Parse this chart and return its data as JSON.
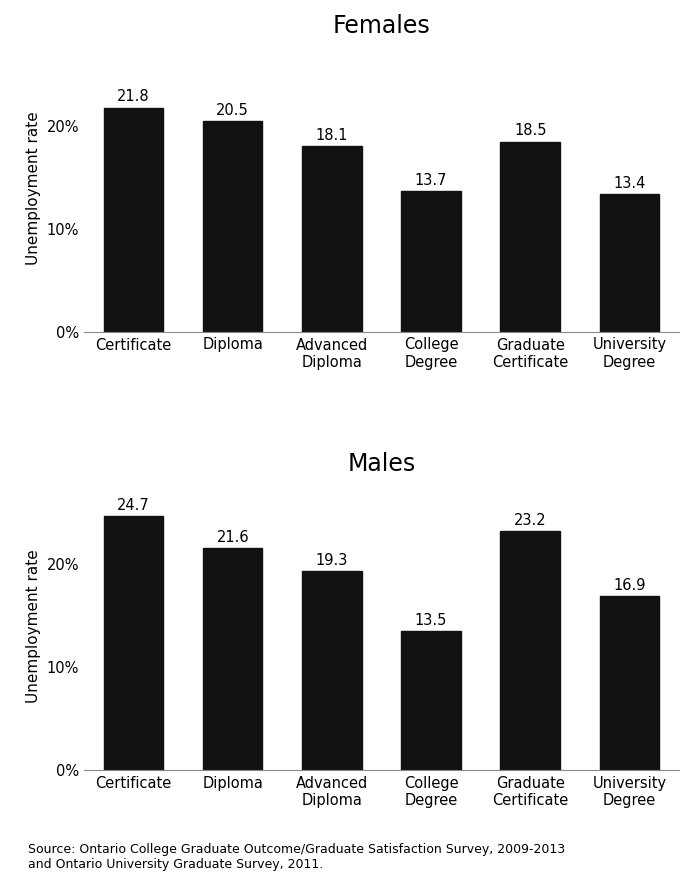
{
  "females": {
    "title": "Females",
    "categories": [
      "Certificate",
      "Diploma",
      "Advanced\nDiploma",
      "College\nDegree",
      "Graduate\nCertificate",
      "University\nDegree"
    ],
    "values": [
      21.8,
      20.5,
      18.1,
      13.7,
      18.5,
      13.4
    ]
  },
  "males": {
    "title": "Males",
    "categories": [
      "Certificate",
      "Diploma",
      "Advanced\nDiploma",
      "College\nDegree",
      "Graduate\nCertificate",
      "University\nDegree"
    ],
    "values": [
      24.7,
      21.6,
      19.3,
      13.5,
      23.2,
      16.9
    ]
  },
  "bar_color": "#111111",
  "ylabel": "Unemployment rate",
  "yticks": [
    0,
    10,
    20
  ],
  "ytick_labels": [
    "0%",
    "10%",
    "20%"
  ],
  "ylim": [
    0,
    28
  ],
  "source_text": "Source: Ontario College Graduate Outcome/Graduate Satisfaction Survey, 2009-2013\nand Ontario University Graduate Survey, 2011.",
  "title_fontsize": 17,
  "label_fontsize": 11,
  "tick_fontsize": 10.5,
  "annotation_fontsize": 10.5,
  "source_fontsize": 9,
  "bar_width": 0.6,
  "background_color": "#ffffff"
}
